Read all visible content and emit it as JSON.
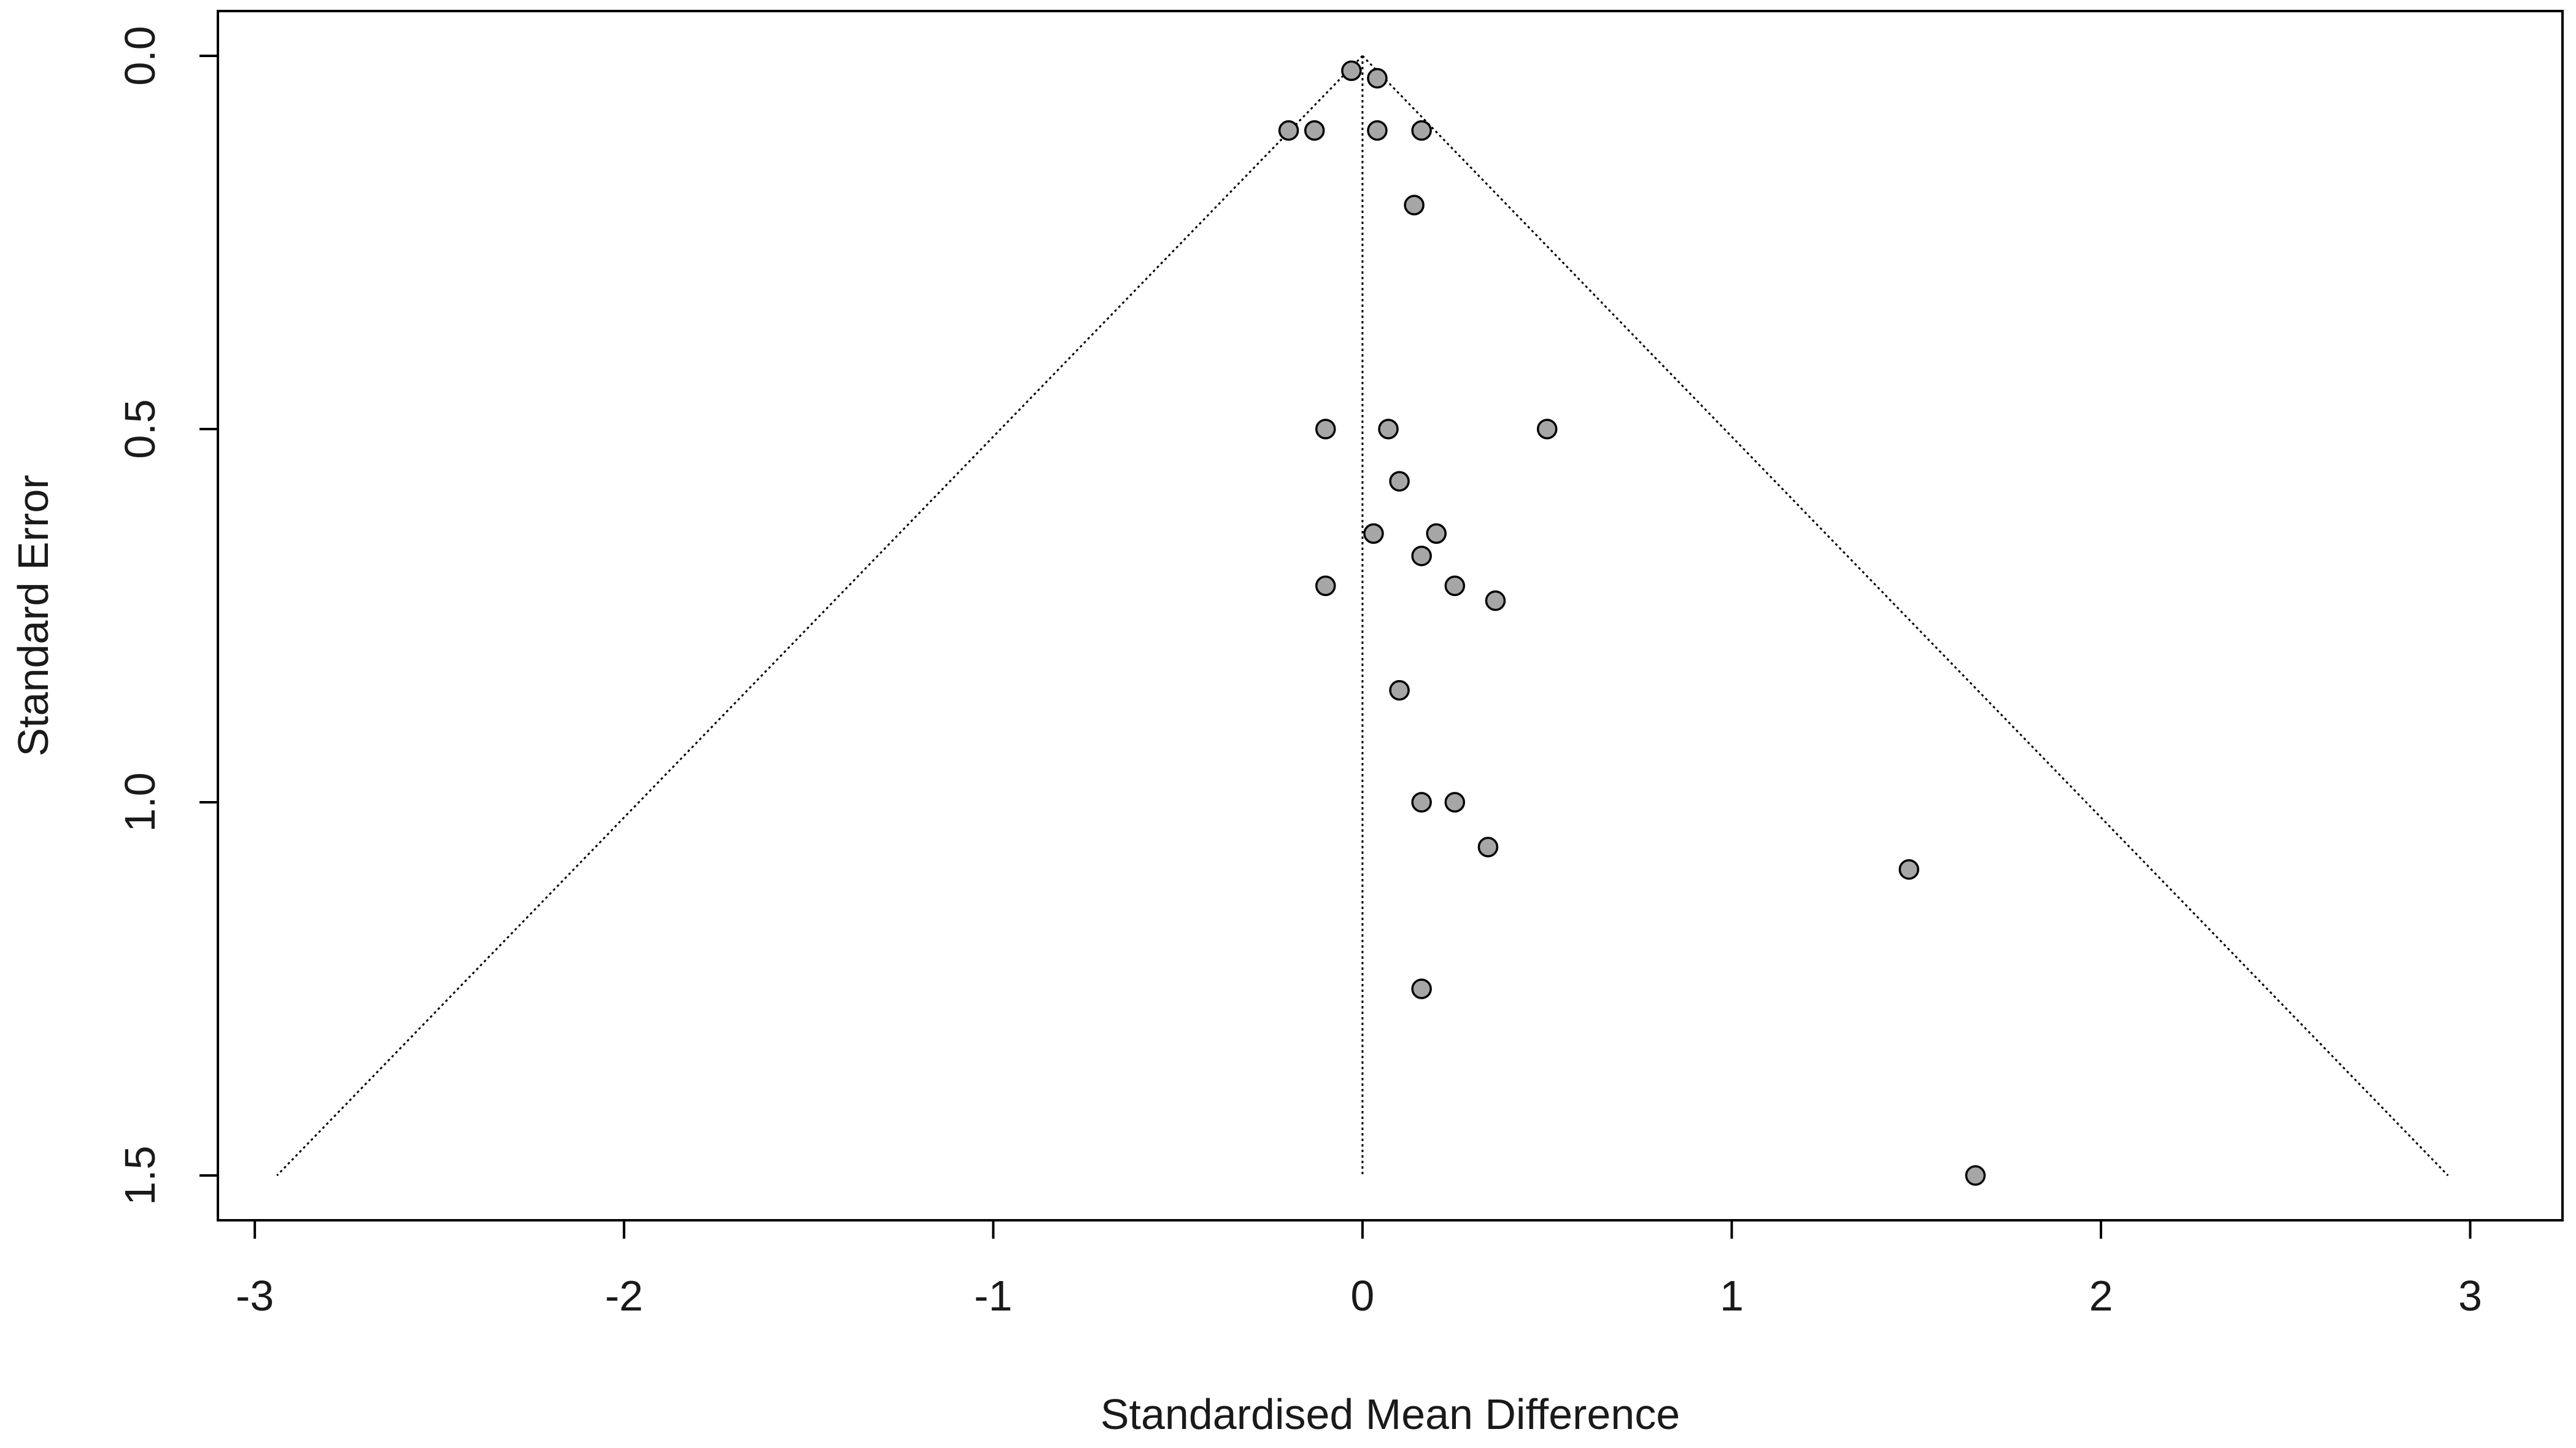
{
  "chart_data": {
    "type": "scatter",
    "subtype": "funnel-plot",
    "title": "",
    "xlabel": "Standardised Mean Difference",
    "ylabel": "Standard Error",
    "xlim": [
      -3.1,
      3.25
    ],
    "ylim": [
      1.56,
      -0.06
    ],
    "y_reversed": true,
    "x_ticks": [
      {
        "value": -3,
        "label": "-3"
      },
      {
        "value": -2,
        "label": "-2"
      },
      {
        "value": -1,
        "label": "-1"
      },
      {
        "value": 0,
        "label": "0"
      },
      {
        "value": 1,
        "label": "1"
      },
      {
        "value": 2,
        "label": "2"
      },
      {
        "value": 3,
        "label": "3"
      }
    ],
    "y_ticks": [
      {
        "value": 0.0,
        "label": "0.0"
      },
      {
        "value": 0.5,
        "label": "0.5"
      },
      {
        "value": 1.0,
        "label": "1.0"
      },
      {
        "value": 1.5,
        "label": "1.5"
      }
    ],
    "grid": false,
    "legend": "none",
    "pooled_estimate": 0.0,
    "funnel_lines": {
      "apex": {
        "x": 0.0,
        "y": 0.0
      },
      "left_base": {
        "x": -2.94,
        "y": 1.5
      },
      "right_base": {
        "x": 2.94,
        "y": 1.5
      },
      "center_bottom": {
        "x": 0.0,
        "y": 1.5
      },
      "style": "dotted"
    },
    "points": [
      {
        "x": -0.03,
        "y": 0.02
      },
      {
        "x": 0.04,
        "y": 0.03
      },
      {
        "x": -0.2,
        "y": 0.1
      },
      {
        "x": -0.13,
        "y": 0.1
      },
      {
        "x": 0.04,
        "y": 0.1
      },
      {
        "x": 0.16,
        "y": 0.1
      },
      {
        "x": 0.14,
        "y": 0.2
      },
      {
        "x": -0.1,
        "y": 0.5
      },
      {
        "x": 0.07,
        "y": 0.5
      },
      {
        "x": 0.5,
        "y": 0.5
      },
      {
        "x": 0.1,
        "y": 0.57
      },
      {
        "x": 0.03,
        "y": 0.64
      },
      {
        "x": 0.2,
        "y": 0.64
      },
      {
        "x": 0.16,
        "y": 0.67
      },
      {
        "x": -0.1,
        "y": 0.71
      },
      {
        "x": 0.25,
        "y": 0.71
      },
      {
        "x": 0.36,
        "y": 0.73
      },
      {
        "x": 0.1,
        "y": 0.85
      },
      {
        "x": 0.16,
        "y": 1.0
      },
      {
        "x": 0.25,
        "y": 1.0
      },
      {
        "x": 0.34,
        "y": 1.06
      },
      {
        "x": 1.48,
        "y": 1.09
      },
      {
        "x": 0.16,
        "y": 1.25
      },
      {
        "x": 1.66,
        "y": 1.5
      }
    ],
    "colors": {
      "point_fill": "#a6a6a6",
      "point_stroke": "#000000",
      "line": "#000000"
    }
  }
}
